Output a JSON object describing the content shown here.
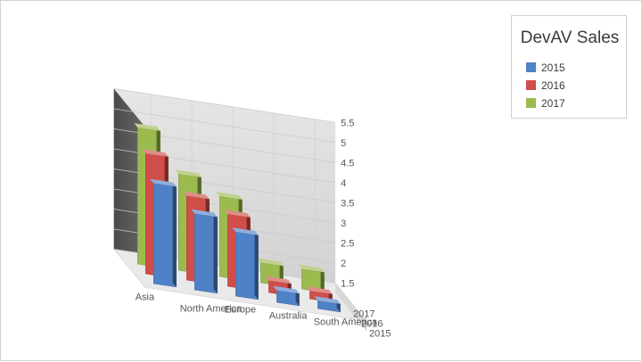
{
  "chart_data": {
    "type": "bar",
    "title": "DevAV Sales",
    "categories": [
      "Asia",
      "North America",
      "Europe",
      "Australia",
      "South America"
    ],
    "series": [
      {
        "name": "2015",
        "color": "#4f81c7",
        "values": [
          4.0,
          3.4,
          3.1,
          1.8,
          1.7
        ]
      },
      {
        "name": "2016",
        "color": "#cf4e4a",
        "values": [
          4.5,
          3.6,
          3.3,
          1.8,
          1.7
        ]
      },
      {
        "name": "2017",
        "color": "#9cbb4f",
        "values": [
          4.9,
          3.9,
          3.5,
          2.0,
          2.0
        ]
      }
    ],
    "y_ticks": [
      "1.5",
      "2",
      "2.5",
      "3",
      "3.5",
      "4",
      "4.5",
      "5",
      "5.5"
    ],
    "ylim": [
      1.5,
      5.5
    ],
    "legend": "top-right",
    "grid": true,
    "view": "3d"
  }
}
